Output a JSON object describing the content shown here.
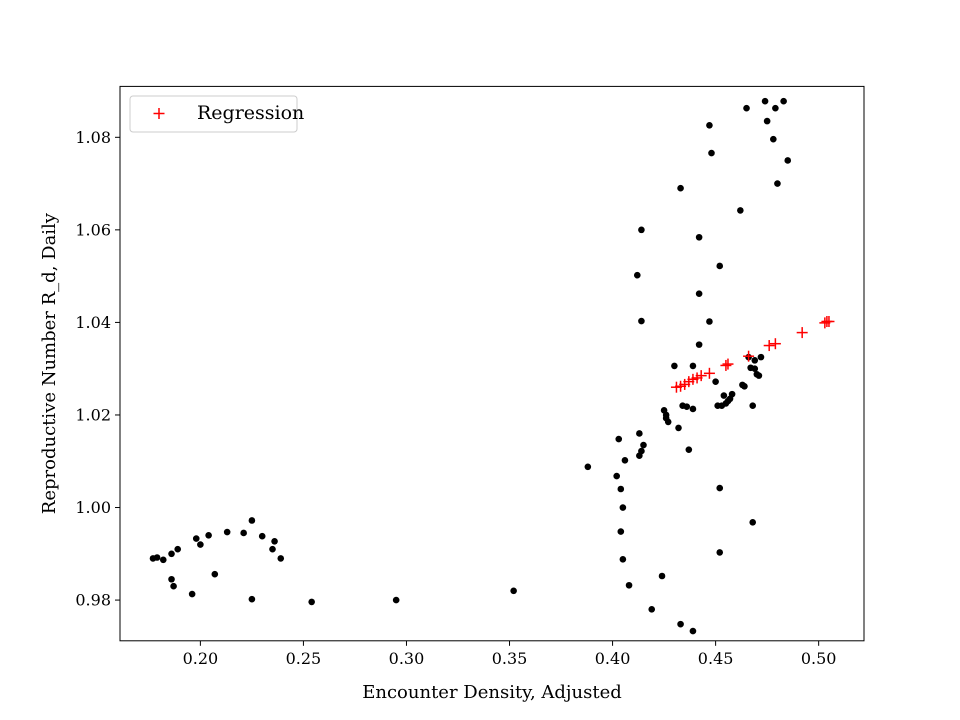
{
  "chart_data": {
    "type": "scatter",
    "xlabel": "Encounter Density, Adjusted",
    "ylabel": "Reproductive Number R_d, Daily",
    "xlim": [
      0.161,
      0.522
    ],
    "ylim": [
      0.9712,
      1.091
    ],
    "xticks": [
      0.2,
      0.25,
      0.3,
      0.35,
      0.4,
      0.45,
      0.5
    ],
    "xtick_labels": [
      "0.20",
      "0.25",
      "0.30",
      "0.35",
      "0.40",
      "0.45",
      "0.50"
    ],
    "yticks": [
      0.98,
      1.0,
      1.02,
      1.04,
      1.06,
      1.08
    ],
    "ytick_labels": [
      "0.98",
      "1.00",
      "1.02",
      "1.04",
      "1.06",
      "1.08"
    ],
    "grid": false,
    "legend": {
      "placement": "top-left",
      "entries": [
        "Regression"
      ]
    },
    "series": [
      {
        "marker": "dot",
        "color": "#000000",
        "points": [
          [
            0.177,
            0.989
          ],
          [
            0.179,
            0.9892
          ],
          [
            0.182,
            0.9887
          ],
          [
            0.186,
            0.99
          ],
          [
            0.186,
            0.9845
          ],
          [
            0.187,
            0.983
          ],
          [
            0.189,
            0.991
          ],
          [
            0.196,
            0.9813
          ],
          [
            0.198,
            0.9933
          ],
          [
            0.2,
            0.992
          ],
          [
            0.204,
            0.994
          ],
          [
            0.207,
            0.9856
          ],
          [
            0.213,
            0.9947
          ],
          [
            0.221,
            0.9945
          ],
          [
            0.225,
            0.9802
          ],
          [
            0.225,
            0.9972
          ],
          [
            0.23,
            0.9938
          ],
          [
            0.235,
            0.991
          ],
          [
            0.236,
            0.9927
          ],
          [
            0.239,
            0.989
          ],
          [
            0.254,
            0.9796
          ],
          [
            0.295,
            0.98
          ],
          [
            0.352,
            0.982
          ],
          [
            0.388,
            1.0088
          ],
          [
            0.402,
            1.0068
          ],
          [
            0.403,
            1.0148
          ],
          [
            0.404,
            0.9948
          ],
          [
            0.404,
            1.004
          ],
          [
            0.405,
            0.9888
          ],
          [
            0.405,
            1.0
          ],
          [
            0.406,
            1.0102
          ],
          [
            0.408,
            0.9832
          ],
          [
            0.412,
            1.0502
          ],
          [
            0.413,
            1.016
          ],
          [
            0.413,
            1.0112
          ],
          [
            0.414,
            1.0403
          ],
          [
            0.414,
            1.06
          ],
          [
            0.414,
            1.0122
          ],
          [
            0.415,
            1.0135
          ],
          [
            0.419,
            0.978
          ],
          [
            0.424,
            0.9852
          ],
          [
            0.425,
            1.021
          ],
          [
            0.426,
            1.02
          ],
          [
            0.426,
            1.0193
          ],
          [
            0.427,
            1.0185
          ],
          [
            0.43,
            1.0306
          ],
          [
            0.432,
            1.0172
          ],
          [
            0.433,
            1.069
          ],
          [
            0.433,
            0.9748
          ],
          [
            0.434,
            1.022
          ],
          [
            0.436,
            1.0218
          ],
          [
            0.437,
            1.0125
          ],
          [
            0.439,
            1.0306
          ],
          [
            0.439,
            1.0213
          ],
          [
            0.439,
            0.9733
          ],
          [
            0.442,
            1.0584
          ],
          [
            0.442,
            1.0462
          ],
          [
            0.442,
            1.0352
          ],
          [
            0.447,
            1.0826
          ],
          [
            0.447,
            1.0402
          ],
          [
            0.448,
            1.0766
          ],
          [
            0.45,
            1.0272
          ],
          [
            0.451,
            1.022
          ],
          [
            0.452,
            1.0522
          ],
          [
            0.452,
            1.0042
          ],
          [
            0.452,
            0.9903
          ],
          [
            0.453,
            1.022
          ],
          [
            0.454,
            1.0242
          ],
          [
            0.455,
            1.0225
          ],
          [
            0.456,
            1.023
          ],
          [
            0.457,
            1.0235
          ],
          [
            0.458,
            1.0245
          ],
          [
            0.462,
            1.0642
          ],
          [
            0.463,
            1.0265
          ],
          [
            0.464,
            1.0262
          ],
          [
            0.465,
            1.0863
          ],
          [
            0.466,
            1.0325
          ],
          [
            0.467,
            1.0302
          ],
          [
            0.468,
            1.022
          ],
          [
            0.468,
            0.9968
          ],
          [
            0.469,
            1.0318
          ],
          [
            0.469,
            1.03
          ],
          [
            0.47,
            1.0288
          ],
          [
            0.471,
            1.0285
          ],
          [
            0.472,
            1.0325
          ],
          [
            0.474,
            1.0878
          ],
          [
            0.475,
            1.0835
          ],
          [
            0.478,
            1.0796
          ],
          [
            0.479,
            1.0863
          ],
          [
            0.48,
            1.07
          ],
          [
            0.483,
            1.0878
          ],
          [
            0.485,
            1.075
          ]
        ]
      },
      {
        "name": "Regression",
        "marker": "plus",
        "color": "#ff0000",
        "points": [
          [
            0.431,
            1.026
          ],
          [
            0.433,
            1.0262
          ],
          [
            0.435,
            1.0266
          ],
          [
            0.437,
            1.0272
          ],
          [
            0.439,
            1.0277
          ],
          [
            0.441,
            1.028
          ],
          [
            0.443,
            1.0285
          ],
          [
            0.447,
            1.029
          ],
          [
            0.455,
            1.0307
          ],
          [
            0.456,
            1.031
          ],
          [
            0.466,
            1.0327
          ],
          [
            0.476,
            1.035
          ],
          [
            0.479,
            1.0354
          ],
          [
            0.492,
            1.0378
          ],
          [
            0.503,
            1.0399
          ],
          [
            0.504,
            1.0402
          ],
          [
            0.505,
            1.0402
          ]
        ]
      }
    ]
  }
}
